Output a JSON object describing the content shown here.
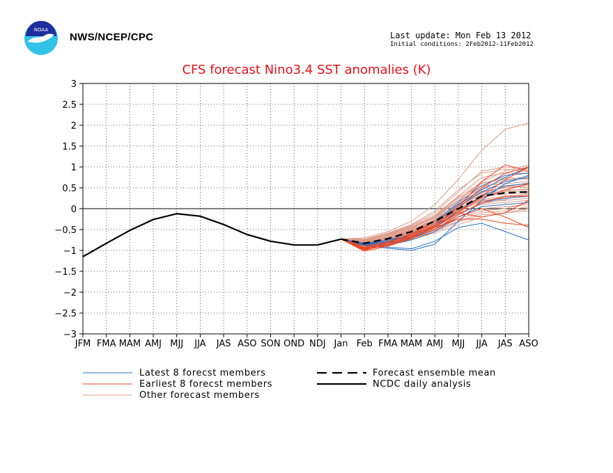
{
  "header": {
    "agency": "NWS/NCEP/CPC",
    "last_update": "Last update: Mon Feb 13 2012",
    "initial_conditions": "Initial conditions: 2Feb2012-11Feb2012",
    "logo_colors": {
      "outer": "#31c2e8",
      "inner": "#1f2f9c",
      "bird": "#ffffff"
    }
  },
  "chart_data": {
    "type": "line",
    "title": "CFS forecast Nino3.4 SST anomalies (K)",
    "xlabel": "",
    "ylabel": "",
    "categories": [
      "JFM",
      "FMA",
      "MAM",
      "AMJ",
      "MJJ",
      "JJA",
      "JAS",
      "ASO",
      "SON",
      "OND",
      "NDJ",
      "Jan",
      "Feb",
      "FMA",
      "MAM",
      "AMJ",
      "MJJ",
      "JJA",
      "JAS",
      "ASO"
    ],
    "ylim": [
      -3,
      3
    ],
    "yticks": [
      3,
      2.5,
      2,
      1.5,
      1,
      0.5,
      0,
      -0.5,
      -1,
      -1.5,
      -2,
      -2.5,
      -3
    ],
    "ytick_labels": [
      "3",
      "2.5",
      "2",
      "1.5",
      "1",
      "0.5",
      "0",
      "−0.5",
      "−1",
      "−1.5",
      "−2",
      "−2.5",
      "−3"
    ],
    "grid": true,
    "legend_placement": "below",
    "colors": {
      "latest": "#2a6fc8",
      "earliest": "#f0461e",
      "other": "#dd9c8a",
      "mean": "#000000",
      "analysis": "#000000"
    },
    "legend": [
      {
        "key": "latest",
        "label": "Latest 8 forecst members"
      },
      {
        "key": "earliest",
        "label": "Earliest 8 forecst members"
      },
      {
        "key": "other",
        "label": "Other forecast members"
      },
      {
        "key": "mean",
        "label": "Forecast ensemble mean"
      },
      {
        "key": "analysis",
        "label": "NCDC daily analysis"
      }
    ],
    "analysis": {
      "name": "NCDC daily analysis",
      "x_index": [
        0,
        1,
        2,
        3,
        4,
        5,
        6,
        7,
        8,
        9,
        10,
        11
      ],
      "values": [
        -1.15,
        -0.83,
        -0.52,
        -0.26,
        -0.12,
        -0.18,
        -0.38,
        -0.62,
        -0.78,
        -0.87,
        -0.87,
        -0.73
      ]
    },
    "ensemble_mean": {
      "name": "Forecast ensemble mean",
      "x_index": [
        11,
        12,
        13,
        14,
        15,
        16,
        17,
        18,
        19
      ],
      "values": [
        -0.73,
        -0.83,
        -0.72,
        -0.55,
        -0.3,
        0.0,
        0.3,
        0.38,
        0.4
      ]
    },
    "members_x_index": [
      11,
      12,
      13,
      14,
      15,
      16,
      17,
      18,
      19
    ],
    "latest_members": [
      [
        -0.73,
        -0.9,
        -0.92,
        -0.96,
        -0.78,
        -0.45,
        -0.35,
        -0.55,
        -0.75
      ],
      [
        -0.73,
        -0.88,
        -0.85,
        -0.72,
        -0.5,
        -0.15,
        0.15,
        0.25,
        0.3
      ],
      [
        -0.73,
        -0.85,
        -0.8,
        -0.65,
        -0.4,
        0.05,
        0.4,
        0.65,
        0.75
      ],
      [
        -0.73,
        -0.86,
        -0.88,
        -0.75,
        -0.55,
        -0.2,
        0.05,
        0.1,
        0.15
      ],
      [
        -0.73,
        -0.84,
        -0.78,
        -0.6,
        -0.3,
        0.15,
        0.55,
        0.8,
        0.85
      ],
      [
        -0.73,
        -0.87,
        -0.95,
        -1.0,
        -0.85,
        -0.3,
        0.2,
        0.6,
        0.8
      ],
      [
        -0.73,
        -0.83,
        -0.75,
        -0.62,
        -0.35,
        0.1,
        0.45,
        0.75,
        1.0
      ],
      [
        -0.73,
        -0.86,
        -0.82,
        -0.7,
        -0.45,
        -0.05,
        0.3,
        0.55,
        0.6
      ]
    ],
    "earliest_members": [
      [
        -0.73,
        -1.0,
        -0.85,
        -0.65,
        -0.4,
        -0.1,
        0.3,
        0.7,
        1.0
      ],
      [
        -0.73,
        -0.95,
        -0.8,
        -0.6,
        -0.45,
        -0.25,
        -0.25,
        -0.35,
        -0.4
      ],
      [
        -0.73,
        -0.98,
        -0.88,
        -0.7,
        -0.5,
        -0.2,
        0.0,
        -0.2,
        -0.45
      ],
      [
        -0.73,
        -0.93,
        -0.82,
        -0.62,
        -0.35,
        -0.05,
        0.25,
        0.45,
        0.6
      ],
      [
        -0.73,
        -0.96,
        -0.85,
        -0.68,
        -0.42,
        0.05,
        0.65,
        1.05,
        0.9
      ],
      [
        -0.73,
        -1.02,
        -0.9,
        -0.72,
        -0.5,
        -0.15,
        0.15,
        0.3,
        0.3
      ],
      [
        -0.73,
        -0.9,
        -0.8,
        -0.6,
        -0.3,
        0.0,
        0.5,
        0.85,
        1.0
      ],
      [
        -0.73,
        -0.97,
        -0.86,
        -0.66,
        -0.45,
        -0.1,
        -0.2,
        -0.1,
        0.2
      ]
    ],
    "other_members": [
      [
        -0.73,
        -0.7,
        -0.55,
        -0.3,
        0.1,
        0.7,
        1.4,
        1.9,
        2.05
      ],
      [
        -0.73,
        -0.75,
        -0.6,
        -0.4,
        -0.1,
        0.4,
        0.9,
        1.0,
        0.95
      ],
      [
        -0.73,
        -0.78,
        -0.68,
        -0.5,
        -0.25,
        0.2,
        0.6,
        0.75,
        0.7
      ],
      [
        -0.73,
        -0.8,
        -0.7,
        -0.55,
        -0.3,
        0.1,
        0.4,
        0.5,
        0.55
      ],
      [
        -0.73,
        -0.82,
        -0.72,
        -0.56,
        -0.35,
        0.0,
        0.3,
        0.35,
        0.4
      ],
      [
        -0.73,
        -0.84,
        -0.74,
        -0.58,
        -0.38,
        -0.05,
        0.2,
        0.25,
        0.3
      ],
      [
        -0.73,
        -0.86,
        -0.78,
        -0.62,
        -0.42,
        -0.1,
        0.1,
        0.15,
        0.2
      ],
      [
        -0.73,
        -0.88,
        -0.8,
        -0.66,
        -0.48,
        -0.2,
        0.0,
        0.05,
        0.1
      ],
      [
        -0.73,
        -0.9,
        -0.83,
        -0.7,
        -0.52,
        -0.3,
        -0.1,
        -0.05,
        0.05
      ],
      [
        -0.73,
        -0.92,
        -0.86,
        -0.74,
        -0.58,
        -0.38,
        -0.2,
        -0.1,
        0.0
      ],
      [
        -0.73,
        -0.76,
        -0.62,
        -0.42,
        -0.15,
        0.3,
        0.75,
        0.85,
        0.85
      ],
      [
        -0.73,
        -0.79,
        -0.66,
        -0.48,
        -0.2,
        0.25,
        0.55,
        0.6,
        0.65
      ],
      [
        -0.73,
        -0.81,
        -0.69,
        -0.52,
        -0.28,
        0.12,
        0.48,
        0.55,
        0.5
      ],
      [
        -0.73,
        -0.83,
        -0.71,
        -0.54,
        -0.32,
        0.05,
        0.35,
        0.45,
        0.45
      ],
      [
        -0.73,
        -0.85,
        -0.76,
        -0.6,
        -0.4,
        -0.08,
        0.22,
        0.3,
        0.35
      ],
      [
        -0.73,
        -0.87,
        -0.79,
        -0.64,
        -0.44,
        -0.15,
        0.15,
        0.2,
        0.25
      ],
      [
        -0.73,
        -0.74,
        -0.6,
        -0.45,
        -0.2,
        0.2,
        0.65,
        0.9,
        1.05
      ],
      [
        -0.73,
        -0.77,
        -0.64,
        -0.46,
        -0.22,
        0.18,
        0.5,
        0.68,
        0.78
      ],
      [
        -0.73,
        -0.8,
        -0.67,
        -0.5,
        -0.27,
        0.08,
        0.42,
        0.5,
        0.58
      ],
      [
        -0.73,
        -0.82,
        -0.73,
        -0.57,
        -0.36,
        -0.02,
        0.28,
        0.4,
        0.42
      ],
      [
        -0.73,
        -0.85,
        -0.77,
        -0.61,
        -0.43,
        -0.12,
        0.12,
        0.22,
        0.38
      ],
      [
        -0.73,
        -0.88,
        -0.81,
        -0.67,
        -0.5,
        -0.25,
        -0.05,
        0.0,
        0.15
      ],
      [
        -0.73,
        -0.9,
        -0.84,
        -0.71,
        -0.55,
        -0.32,
        -0.15,
        -0.1,
        -0.05
      ],
      [
        -0.73,
        -0.73,
        -0.58,
        -0.38,
        -0.05,
        0.45,
        0.85,
        0.95,
        0.88
      ],
      [
        -0.73,
        -0.76,
        -0.63,
        -0.44,
        -0.18,
        0.28,
        0.62,
        0.7,
        0.72
      ],
      [
        -0.73,
        -0.79,
        -0.68,
        -0.51,
        -0.26,
        0.1,
        0.38,
        0.52,
        0.62
      ],
      [
        -0.73,
        -0.81,
        -0.7,
        -0.53,
        -0.3,
        0.06,
        0.33,
        0.42,
        0.48
      ],
      [
        -0.73,
        -0.84,
        -0.75,
        -0.59,
        -0.39,
        -0.06,
        0.18,
        0.28,
        0.32
      ]
    ]
  }
}
